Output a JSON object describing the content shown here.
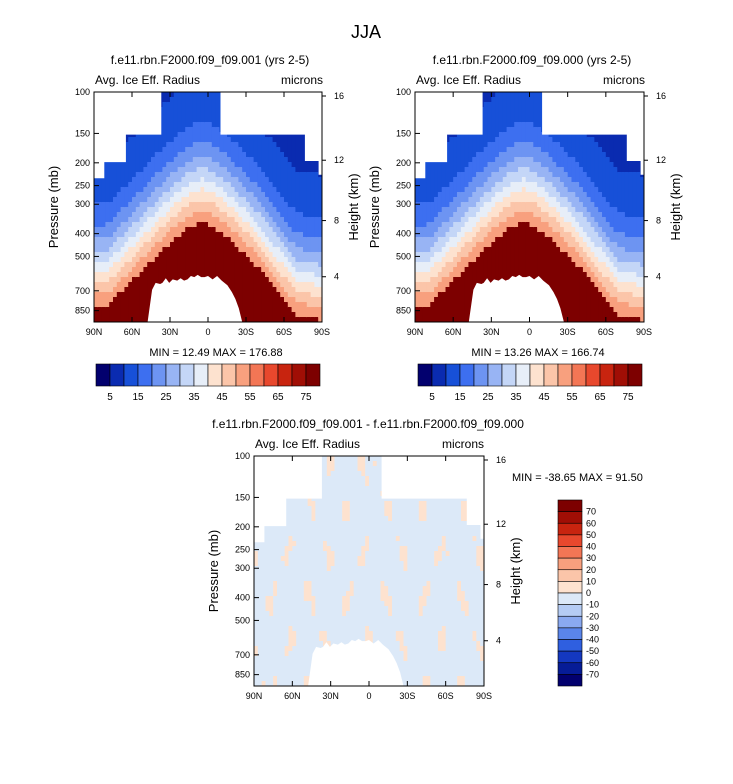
{
  "page_title": "JJA",
  "panel_left": {
    "title": "f.e11.rbn.F2000.f09_f09.001 (yrs 2-5)",
    "left_label": "Avg. Ice Eff. Radius",
    "right_label": "microns",
    "stats": "MIN = 12.49  MAX = 176.88"
  },
  "panel_right": {
    "title": "f.e11.rbn.F2000.f09_f09.000 (yrs 2-5)",
    "left_label": "Avg. Ice Eff. Radius",
    "right_label": "microns",
    "stats": "MIN = 13.26  MAX = 166.74"
  },
  "panel_diff": {
    "title": "f.e11.rbn.F2000.f09_f09.001 - f.e11.rbn.F2000.f09_f09.000",
    "left_label": "Avg. Ice Eff. Radius",
    "right_label": "microns",
    "stats": "MIN = -38.65  MAX = 91.50"
  },
  "axes": {
    "ylabel": "Pressure (mb)",
    "ylabel_right": "Height (km)",
    "x_ticks": [
      "90N",
      "60N",
      "30N",
      "0",
      "30S",
      "60S",
      "90S"
    ],
    "y_ticks": [
      "100",
      "150",
      "200",
      "250",
      "300",
      "400",
      "500",
      "700",
      "850"
    ],
    "height_ticks": [
      "16",
      "12",
      "8",
      "4"
    ]
  },
  "chart_data": [
    {
      "type": "heatmap",
      "title": "f.e11.rbn.F2000.f09_f09.001 (yrs 2-5)",
      "variable": "Avg. Ice Eff. Radius",
      "units": "microns",
      "xlabel": "",
      "ylabel": "Pressure (mb)",
      "ylabel_right": "Height (km)",
      "x_ticks": [
        "90N",
        "60N",
        "30N",
        "0",
        "30S",
        "60S",
        "90S"
      ],
      "y_ticks": [
        100,
        150,
        200,
        250,
        300,
        400,
        500,
        700,
        850
      ],
      "y_scale": "log",
      "min": 12.49,
      "max": 176.88,
      "colorbar_levels": [
        5,
        10,
        15,
        20,
        25,
        30,
        35,
        40,
        45,
        50,
        55,
        60,
        65,
        70,
        75
      ],
      "colorbar_labels": [
        "5",
        "15",
        "25",
        "35",
        "45",
        "55",
        "65",
        "75"
      ]
    },
    {
      "type": "heatmap",
      "title": "f.e11.rbn.F2000.f09_f09.000 (yrs 2-5)",
      "variable": "Avg. Ice Eff. Radius",
      "units": "microns",
      "xlabel": "",
      "ylabel": "Pressure (mb)",
      "ylabel_right": "Height (km)",
      "x_ticks": [
        "90N",
        "60N",
        "30N",
        "0",
        "30S",
        "60S",
        "90S"
      ],
      "y_ticks": [
        100,
        150,
        200,
        250,
        300,
        400,
        500,
        700,
        850
      ],
      "y_scale": "log",
      "min": 13.26,
      "max": 166.74,
      "colorbar_levels": [
        5,
        10,
        15,
        20,
        25,
        30,
        35,
        40,
        45,
        50,
        55,
        60,
        65,
        70,
        75
      ],
      "colorbar_labels": [
        "5",
        "15",
        "25",
        "35",
        "45",
        "55",
        "65",
        "75"
      ]
    },
    {
      "type": "heatmap",
      "title": "f.e11.rbn.F2000.f09_f09.001 - f.e11.rbn.F2000.f09_f09.000",
      "variable": "Avg. Ice Eff. Radius",
      "units": "microns",
      "xlabel": "",
      "ylabel": "Pressure (mb)",
      "ylabel_right": "Height (km)",
      "x_ticks": [
        "90N",
        "60N",
        "30N",
        "0",
        "30S",
        "60S",
        "90S"
      ],
      "y_ticks": [
        100,
        150,
        200,
        250,
        300,
        400,
        500,
        700,
        850
      ],
      "y_scale": "log",
      "min": -38.65,
      "max": 91.5,
      "colorbar_levels": [
        -70,
        -60,
        -50,
        -40,
        -30,
        -20,
        -10,
        0,
        10,
        20,
        30,
        40,
        50,
        60,
        70
      ],
      "colorbar_labels": [
        "70",
        "60",
        "50",
        "40",
        "30",
        "20",
        "10",
        "0",
        "-10",
        "-20",
        "-30",
        "-40",
        "-50",
        "-60",
        "-70"
      ]
    }
  ],
  "colormap": {
    "sequential": [
      "#02006e",
      "#0a2bb0",
      "#1750d8",
      "#3d6ff0",
      "#6d94f2",
      "#98b4f4",
      "#c4d6f7",
      "#e7eef8",
      "#fde2cf",
      "#fbc5a9",
      "#f8a07e",
      "#f37655",
      "#e8482d",
      "#c8240f",
      "#a00e05",
      "#7d0000"
    ],
    "diverging": [
      "#7d0000",
      "#a00e05",
      "#c8240f",
      "#e8482d",
      "#f37655",
      "#f8a07e",
      "#fbc5a9",
      "#fde2cf",
      "#dce9f8",
      "#b5ccf4",
      "#8aa9f0",
      "#5a85ea",
      "#2f5fe0",
      "#1438c0",
      "#061c96",
      "#02006e"
    ],
    "mask": "#ffffff"
  }
}
